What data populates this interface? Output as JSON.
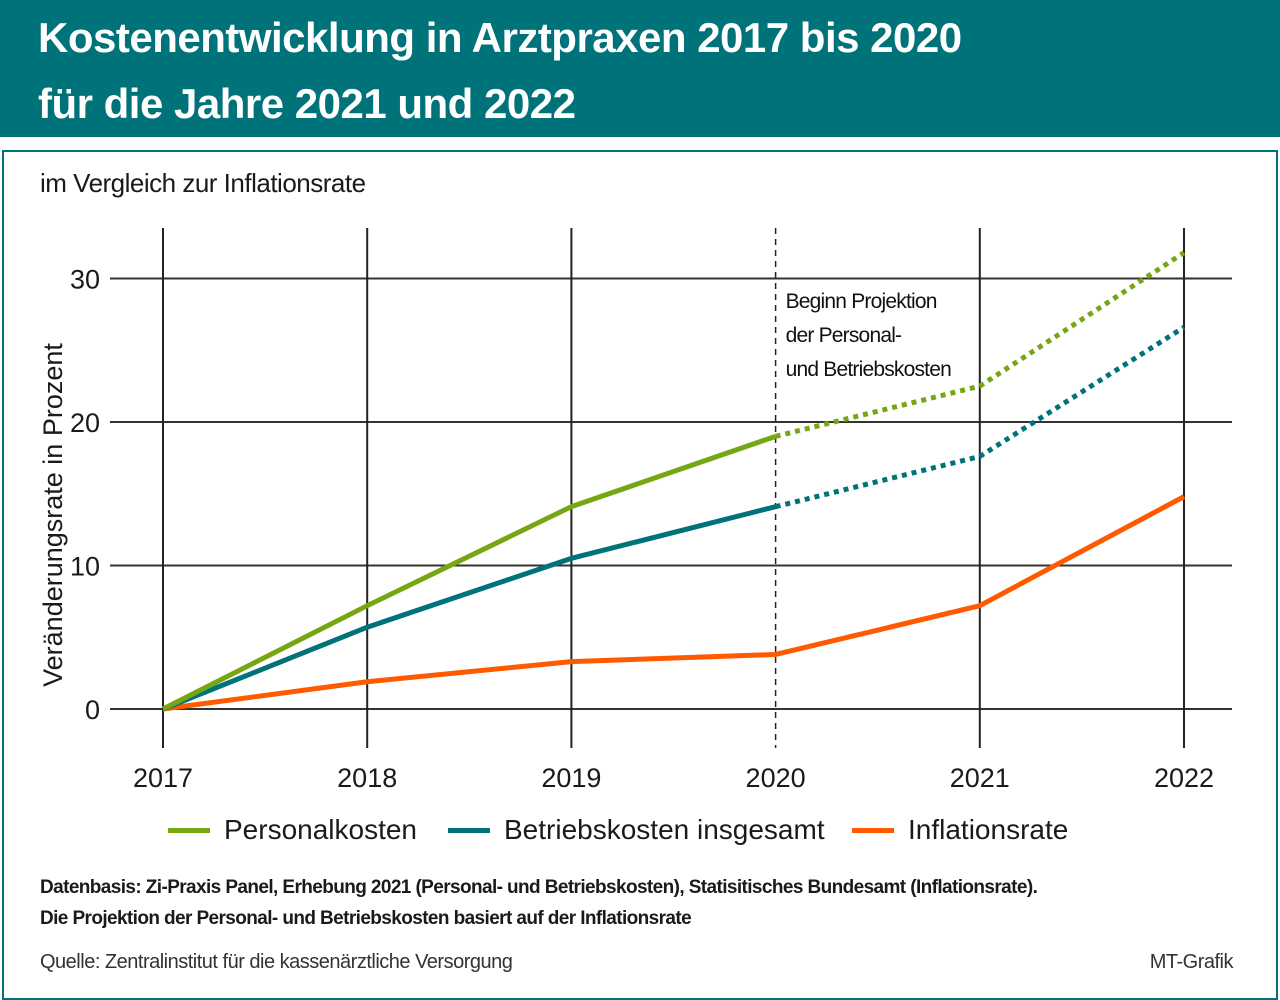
{
  "header": {
    "title_line1": "Kostenentwicklung in Arztpraxen 2017 bis 2020",
    "title_line2": "für die Jahre 2021 und 2022"
  },
  "subtitle": "im Vergleich zur Inflationsrate",
  "chart_data": {
    "type": "line",
    "title": "Kostenentwicklung in Arztpraxen 2017 bis 2020 für die Jahre 2021 und 2022",
    "subtitle": "im Vergleich zur Inflationsrate",
    "xlabel": "",
    "ylabel": "Veränderungsrate in Prozent",
    "x": [
      "2017",
      "2018",
      "2019",
      "2020",
      "2021",
      "2022"
    ],
    "ylim": [
      0,
      33
    ],
    "yticks": [
      "0",
      "10",
      "20",
      "30"
    ],
    "ytick_values": [
      0,
      10,
      20,
      30
    ],
    "grid": true,
    "legend_position": "bottom",
    "projection_start": "2020",
    "annotation": [
      "Beginn Projektion",
      "der Personal-",
      "und Betriebskosten"
    ],
    "series": [
      {
        "name": "Personalkosten",
        "color": "#76a713",
        "values": [
          0,
          7.2,
          14.1,
          19.0,
          22.5,
          31.8
        ],
        "projected_from_index": 3
      },
      {
        "name": "Betriebskosten insgesamt",
        "color": "#00727a",
        "values": [
          0,
          5.7,
          10.5,
          14.1,
          17.6,
          26.6
        ],
        "projected_from_index": 3
      },
      {
        "name": "Inflationsrate",
        "color": "#ff5a00",
        "values": [
          0,
          1.9,
          3.3,
          3.8,
          7.2,
          14.8
        ],
        "projected_from_index": null
      }
    ]
  },
  "notes": {
    "line1": "Datenbasis: Zi-Praxis Panel, Erhebung 2021 (Personal- und Betriebskosten), Statisitisches Bundesamt (Inflationsrate).",
    "line2": "Die Projektion der Personal- und Betriebskosten basiert auf der Inflationsrate"
  },
  "source": "Quelle: Zentralinstitut für die kassenärztliche Versorgung",
  "credit": "MT-Grafik"
}
